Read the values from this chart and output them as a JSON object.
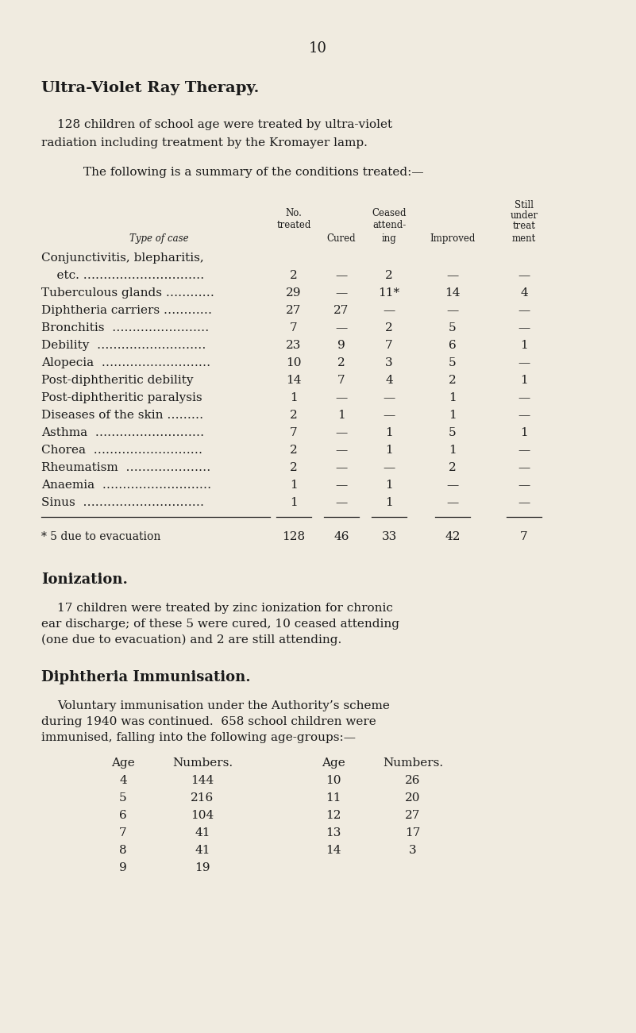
{
  "page_number": "10",
  "bg_color": "#f0ebe0",
  "title": "Ultra-Violet Ray Therapy.",
  "intro_line1": "128 children of school age were treated by ultra-violet",
  "intro_line2": "radiation including treatment by the Kromayer lamp.",
  "summary_intro": "The following is a summary of the conditions treated:—",
  "col_headers_line1": [
    "No.",
    "",
    "Ceased",
    "",
    "Still"
  ],
  "col_headers_line2": [
    "treated",
    "",
    "attend-",
    "",
    "under"
  ],
  "col_headers_line3": [
    "",
    "Cured",
    "ing",
    "Improved",
    "treat"
  ],
  "col_headers_line4": [
    "",
    "",
    "",
    "",
    "ment"
  ],
  "col_label": "Type of case",
  "table_rows": [
    [
      "Conjunctivitis, blepharitis,",
      "",
      "",
      "",
      "",
      ""
    ],
    [
      "    etc. …………………………",
      "2",
      "—",
      "2",
      "—",
      "—"
    ],
    [
      "Tuberculous glands …………",
      "29",
      "—",
      "11*",
      "14",
      "4"
    ],
    [
      "Diphtheria carriers …………",
      "27",
      "27",
      "—",
      "—",
      "—"
    ],
    [
      "Bronchitis  ……………………",
      "7",
      "—",
      "2",
      "5",
      "—"
    ],
    [
      "Debility  ………………………",
      "23",
      "9",
      "7",
      "6",
      "1"
    ],
    [
      "Alopecia  ………………………",
      "10",
      "2",
      "3",
      "5",
      "—"
    ],
    [
      "Post-diphtheritic debility",
      "14",
      "7",
      "4",
      "2",
      "1"
    ],
    [
      "Post-diphtheritic paralysis",
      "1",
      "—",
      "—",
      "1",
      "—"
    ],
    [
      "Diseases of the skin ………",
      "2",
      "1",
      "—",
      "1",
      "—"
    ],
    [
      "Asthma  ………………………",
      "7",
      "—",
      "1",
      "5",
      "1"
    ],
    [
      "Chorea  ………………………",
      "2",
      "—",
      "1",
      "1",
      "—"
    ],
    [
      "Rheumatism  …………………",
      "2",
      "—",
      "—",
      "2",
      "—"
    ],
    [
      "Anaemia  ………………………",
      "1",
      "—",
      "1",
      "—",
      "—"
    ],
    [
      "Sinus  …………………………",
      "1",
      "—",
      "1",
      "—",
      "—"
    ]
  ],
  "totals_label": "* 5 due to evacuation",
  "totals": [
    "128",
    "46",
    "33",
    "42",
    "7"
  ],
  "ionization_title": "Ionization.",
  "ionization_line1": "17 children were treated by zinc ionization for chronic",
  "ionization_line2": "ear discharge; of these 5 were cured, 10 ceased attending",
  "ionization_line3": "(one due to evacuation) and 2 are still attending.",
  "diphtheria_title": "Diphtheria Immunisation.",
  "diphtheria_line1": "Voluntary immunisation under the Authority’s scheme",
  "diphtheria_line2": "during 1940 was continued.  658 school children were",
  "diphtheria_line3": "immunised, falling into the following age-groups:—",
  "age_col_headers": [
    "Age",
    "Numbers.",
    "Age",
    "Numbers."
  ],
  "age_left": [
    [
      "4",
      "144"
    ],
    [
      "5",
      "216"
    ],
    [
      "6",
      "104"
    ],
    [
      "7",
      "41"
    ],
    [
      "8",
      "41"
    ],
    [
      "9",
      "19"
    ]
  ],
  "age_right": [
    [
      "10",
      "26"
    ],
    [
      "11",
      "20"
    ],
    [
      "12",
      "27"
    ],
    [
      "13",
      "17"
    ],
    [
      "14",
      "3"
    ]
  ]
}
